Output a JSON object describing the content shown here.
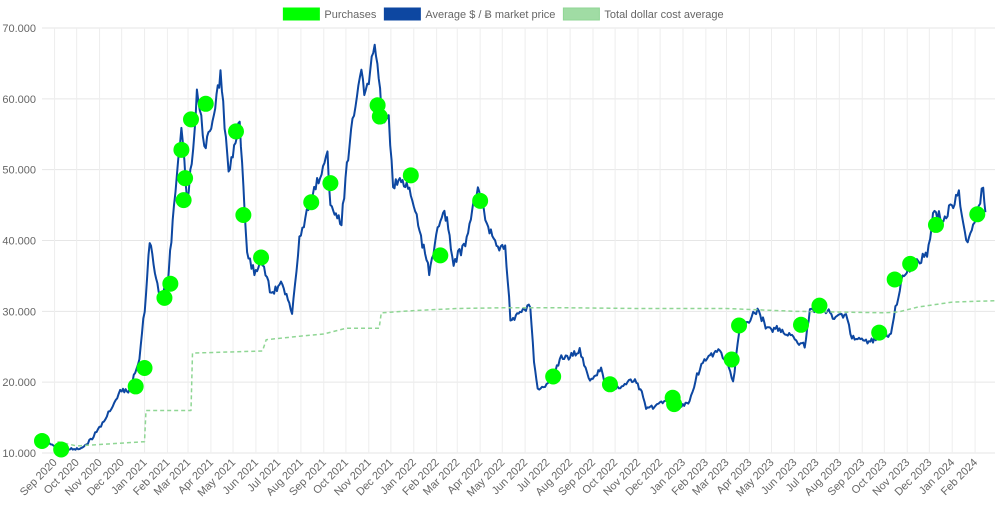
{
  "chart_data": {
    "type": "line",
    "legend": {
      "position": "top-center",
      "items": [
        {
          "label": "Purchases",
          "color": "#00ff00",
          "style": "box"
        },
        {
          "label": "Average $ / Ƀ market price",
          "color": "#0d47a1",
          "style": "box"
        },
        {
          "label": "Total dollar cost average",
          "color": "#8fd694",
          "style": "dashed"
        }
      ]
    },
    "ylim": [
      10000,
      70000
    ],
    "y_ticks": [
      "70.000",
      "60.000",
      "50.000",
      "40.000",
      "30.000",
      "20.000",
      "10.000"
    ],
    "grid": true,
    "x_range_months": [
      "2020-08-15",
      "2024-02-28"
    ],
    "x_ticks": [
      "Sep 2020",
      "Oct 2020",
      "Nov 2020",
      "Dec 2020",
      "Jan 2021",
      "Feb 2021",
      "Mar 2021",
      "Apr 2021",
      "May 2021",
      "Jun 2021",
      "Jul 2021",
      "Aug 2021",
      "Sep 2021",
      "Oct 2021",
      "Nov 2021",
      "Dec 2021",
      "Jan 2022",
      "Feb 2022",
      "Mar 2022",
      "Apr 2022",
      "May 2022",
      "Jun 2022",
      "Jul 2022",
      "Aug 2022",
      "Sep 2022",
      "Oct 2022",
      "Nov 2022",
      "Dec 2022",
      "Jan 2023",
      "Feb 2023",
      "Mar 2023",
      "Apr 2023",
      "May 2023",
      "Jun 2023",
      "Jul 2023",
      "Aug 2023",
      "Sep 2023",
      "Oct 2023",
      "Nov 2023",
      "Dec 2023",
      "Jan 2024",
      "Feb 2024"
    ],
    "x_tick_dates": [
      "2020-09-01",
      "2020-10-01",
      "2020-11-01",
      "2020-12-01",
      "2021-01-01",
      "2021-02-01",
      "2021-03-01",
      "2021-04-01",
      "2021-05-01",
      "2021-06-01",
      "2021-07-01",
      "2021-08-01",
      "2021-09-01",
      "2021-10-01",
      "2021-11-01",
      "2021-12-01",
      "2022-01-01",
      "2022-02-01",
      "2022-03-01",
      "2022-04-01",
      "2022-05-01",
      "2022-06-01",
      "2022-07-01",
      "2022-08-01",
      "2022-09-01",
      "2022-10-01",
      "2022-11-01",
      "2022-12-01",
      "2023-01-01",
      "2023-02-01",
      "2023-03-01",
      "2023-04-01",
      "2023-05-01",
      "2023-06-01",
      "2023-07-01",
      "2023-08-01",
      "2023-09-01",
      "2023-10-01",
      "2023-11-01",
      "2023-12-01",
      "2024-01-01",
      "2024-02-01"
    ],
    "series": [
      {
        "name": "Average $ / Ƀ market price",
        "color": "#0d47a1",
        "points": [
          [
            "2020-08-15",
            11700
          ],
          [
            "2020-08-25",
            11500
          ],
          [
            "2020-09-05",
            10400
          ],
          [
            "2020-09-20",
            10500
          ],
          [
            "2020-10-05",
            10600
          ],
          [
            "2020-10-20",
            11800
          ],
          [
            "2020-11-01",
            13600
          ],
          [
            "2020-11-15",
            16000
          ],
          [
            "2020-12-01",
            19000
          ],
          [
            "2020-12-10",
            18500
          ],
          [
            "2020-12-25",
            23500
          ],
          [
            "2021-01-03",
            32000
          ],
          [
            "2021-01-08",
            40000
          ],
          [
            "2021-01-15",
            36000
          ],
          [
            "2021-01-22",
            32000
          ],
          [
            "2021-02-01",
            33500
          ],
          [
            "2021-02-10",
            45000
          ],
          [
            "2021-02-20",
            56000
          ],
          [
            "2021-02-28",
            46000
          ],
          [
            "2021-03-10",
            55000
          ],
          [
            "2021-03-13",
            60500
          ],
          [
            "2021-03-25",
            53000
          ],
          [
            "2021-04-05",
            58500
          ],
          [
            "2021-04-14",
            63500
          ],
          [
            "2021-04-25",
            50000
          ],
          [
            "2021-05-10",
            57000
          ],
          [
            "2021-05-15",
            47000
          ],
          [
            "2021-05-20",
            38000
          ],
          [
            "2021-05-30",
            35500
          ],
          [
            "2021-06-10",
            37000
          ],
          [
            "2021-06-22",
            32500
          ],
          [
            "2021-07-05",
            34000
          ],
          [
            "2021-07-20",
            30000
          ],
          [
            "2021-07-30",
            40000
          ],
          [
            "2021-08-15",
            46000
          ],
          [
            "2021-08-25",
            48500
          ],
          [
            "2021-09-06",
            52000
          ],
          [
            "2021-09-10",
            45000
          ],
          [
            "2021-09-25",
            42500
          ],
          [
            "2021-10-06",
            54000
          ],
          [
            "2021-10-20",
            64000
          ],
          [
            "2021-10-28",
            60500
          ],
          [
            "2021-11-09",
            67500
          ],
          [
            "2021-11-20",
            57500
          ],
          [
            "2021-11-28",
            57000
          ],
          [
            "2021-12-04",
            48000
          ],
          [
            "2021-12-15",
            48500
          ],
          [
            "2021-12-28",
            47000
          ],
          [
            "2022-01-07",
            42000
          ],
          [
            "2022-01-22",
            35500
          ],
          [
            "2022-02-08",
            44000
          ],
          [
            "2022-02-15",
            43000
          ],
          [
            "2022-02-24",
            37000
          ],
          [
            "2022-03-10",
            39000
          ],
          [
            "2022-03-29",
            47500
          ],
          [
            "2022-04-10",
            42000
          ],
          [
            "2022-04-25",
            39000
          ],
          [
            "2022-05-05",
            39500
          ],
          [
            "2022-05-12",
            29000
          ],
          [
            "2022-05-25",
            29500
          ],
          [
            "2022-06-08",
            31000
          ],
          [
            "2022-06-13",
            22500
          ],
          [
            "2022-06-18",
            19000
          ],
          [
            "2022-06-30",
            19500
          ],
          [
            "2022-07-10",
            21000
          ],
          [
            "2022-07-20",
            23500
          ],
          [
            "2022-07-30",
            23500
          ],
          [
            "2022-08-14",
            24500
          ],
          [
            "2022-08-28",
            20000
          ],
          [
            "2022-09-12",
            22000
          ],
          [
            "2022-09-20",
            19000
          ],
          [
            "2022-10-10",
            19200
          ],
          [
            "2022-10-28",
            20600
          ],
          [
            "2022-11-08",
            18000
          ],
          [
            "2022-11-12",
            16500
          ],
          [
            "2022-11-25",
            16500
          ],
          [
            "2022-12-14",
            17800
          ],
          [
            "2022-12-30",
            16600
          ],
          [
            "2023-01-10",
            17300
          ],
          [
            "2023-01-20",
            21000
          ],
          [
            "2023-01-30",
            23000
          ],
          [
            "2023-02-16",
            24500
          ],
          [
            "2023-02-28",
            23300
          ],
          [
            "2023-03-10",
            20000
          ],
          [
            "2023-03-18",
            27000
          ],
          [
            "2023-04-12",
            30300
          ],
          [
            "2023-04-25",
            27500
          ],
          [
            "2023-05-10",
            27500
          ],
          [
            "2023-05-25",
            26500
          ],
          [
            "2023-06-15",
            25000
          ],
          [
            "2023-06-22",
            30000
          ],
          [
            "2023-07-10",
            30500
          ],
          [
            "2023-07-25",
            29300
          ],
          [
            "2023-08-10",
            29500
          ],
          [
            "2023-08-18",
            26300
          ],
          [
            "2023-09-10",
            25800
          ],
          [
            "2023-09-25",
            26300
          ],
          [
            "2023-10-10",
            27000
          ],
          [
            "2023-10-24",
            34500
          ],
          [
            "2023-11-10",
            37000
          ],
          [
            "2023-11-28",
            37800
          ],
          [
            "2023-12-06",
            44000
          ],
          [
            "2023-12-20",
            43000
          ],
          [
            "2024-01-10",
            46500
          ],
          [
            "2024-01-22",
            39500
          ],
          [
            "2024-02-02",
            43000
          ],
          [
            "2024-02-12",
            48000
          ],
          [
            "2024-02-15",
            44000
          ]
        ]
      },
      {
        "name": "Total dollar cost average",
        "color": "#8fd694",
        "points": [
          [
            "2020-09-05",
            11600
          ],
          [
            "2020-10-01",
            11000
          ],
          [
            "2020-11-01",
            11200
          ],
          [
            "2020-12-01",
            11400
          ],
          [
            "2021-01-01",
            11600
          ],
          [
            "2021-01-03",
            16000
          ],
          [
            "2021-03-05",
            16000
          ],
          [
            "2021-03-07",
            24100
          ],
          [
            "2021-06-10",
            24400
          ],
          [
            "2021-06-15",
            26000
          ],
          [
            "2021-08-01",
            26500
          ],
          [
            "2021-09-01",
            26800
          ],
          [
            "2021-10-01",
            27600
          ],
          [
            "2021-11-15",
            27600
          ],
          [
            "2021-11-18",
            29800
          ],
          [
            "2022-01-01",
            30100
          ],
          [
            "2022-03-01",
            30400
          ],
          [
            "2022-05-01",
            30500
          ],
          [
            "2022-08-01",
            30500
          ],
          [
            "2022-11-01",
            30400
          ],
          [
            "2023-03-01",
            30400
          ],
          [
            "2023-06-01",
            30000
          ],
          [
            "2023-10-01",
            29800
          ],
          [
            "2023-10-20",
            29900
          ],
          [
            "2023-11-15",
            30600
          ],
          [
            "2024-01-01",
            31300
          ],
          [
            "2024-02-28",
            31500
          ]
        ]
      }
    ],
    "purchases": [
      [
        "2020-08-15",
        11700
      ],
      [
        "2020-09-10",
        10500
      ],
      [
        "2020-12-20",
        19400
      ],
      [
        "2021-01-01",
        22000
      ],
      [
        "2021-01-28",
        31900
      ],
      [
        "2021-02-05",
        33900
      ],
      [
        "2021-02-20",
        52800
      ],
      [
        "2021-02-23",
        45700
      ],
      [
        "2021-02-25",
        48800
      ],
      [
        "2021-03-05",
        57100
      ],
      [
        "2021-03-25",
        59300
      ],
      [
        "2021-05-05",
        55400
      ],
      [
        "2021-05-15",
        43600
      ],
      [
        "2021-06-08",
        37600
      ],
      [
        "2021-08-15",
        45400
      ],
      [
        "2021-09-10",
        48100
      ],
      [
        "2021-11-13",
        59100
      ],
      [
        "2021-11-16",
        57500
      ],
      [
        "2021-12-28",
        49200
      ],
      [
        "2022-02-06",
        37900
      ],
      [
        "2022-04-01",
        45600
      ],
      [
        "2022-07-09",
        20800
      ],
      [
        "2022-09-24",
        19700
      ],
      [
        "2022-12-18",
        17800
      ],
      [
        "2022-12-20",
        16900
      ],
      [
        "2023-03-08",
        23200
      ],
      [
        "2023-03-18",
        28000
      ],
      [
        "2023-06-10",
        28100
      ],
      [
        "2023-07-05",
        30800
      ],
      [
        "2023-09-24",
        27000
      ],
      [
        "2023-10-15",
        34500
      ],
      [
        "2023-11-05",
        36700
      ],
      [
        "2023-12-10",
        42200
      ],
      [
        "2024-02-04",
        43700
      ]
    ]
  }
}
